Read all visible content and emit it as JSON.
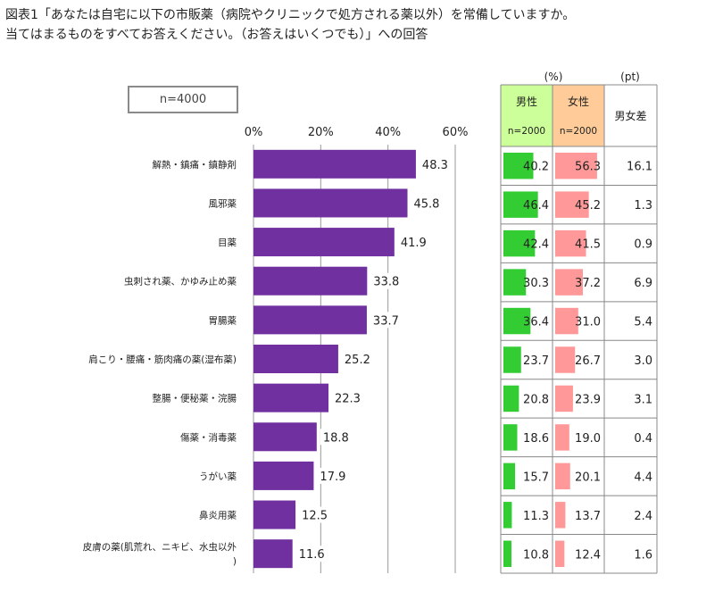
{
  "title_line1": "図表1「あなたは自宅に以下の市販薬（病院やクリニックで処方される薬以外）を常備していますか。",
  "title_line2": "当てはまるものをすべてお答えください。（お答えはいくつでも）」への回答",
  "sample": "n=4000",
  "table_headers": {
    "unit_pct": "(%)",
    "unit_pt": "(pt)",
    "male": "男性",
    "male_n": "n=2000",
    "female": "女性",
    "female_n": "n=2000",
    "diff": "男女差"
  },
  "colors": {
    "bar": "#7030a0",
    "male": "#33cc33",
    "female": "#ff9999",
    "male_header": "#ccff99",
    "female_header": "#ffcc99",
    "diff_red": "#cc0000",
    "diff_blue": "#1f6fbf",
    "grid": "#999999"
  },
  "chart_data": {
    "type": "bar",
    "orientation": "horizontal",
    "xlim": [
      0,
      60
    ],
    "x_ticks": [
      "0%",
      "20%",
      "40%",
      "60%"
    ],
    "categories": [
      "解熱・鎮痛・鎮静剤",
      "風邪薬",
      "目薬",
      "虫刺され薬、かゆみ止め薬",
      "胃腸薬",
      "肩こり・腰痛・筋肉痛の薬(湿布薬)",
      "整腸・便秘薬・浣腸",
      "傷薬・消毒薬",
      "うがい薬",
      "鼻炎用薬",
      "皮膚の薬(肌荒れ、ニキビ、水虫以外)"
    ],
    "values": [
      48.3,
      45.8,
      41.9,
      33.8,
      33.7,
      25.2,
      22.3,
      18.8,
      17.9,
      12.5,
      11.6
    ],
    "value_labels": [
      "48.3",
      "45.8",
      "41.9",
      "33.8",
      "33.7",
      "25.2",
      "22.3",
      "18.8",
      "17.9",
      "12.5",
      "11.6"
    ],
    "male": [
      40.2,
      46.4,
      42.4,
      30.3,
      36.4,
      23.7,
      20.8,
      18.6,
      15.7,
      11.3,
      10.8
    ],
    "male_labels": [
      "40.2",
      "46.4",
      "42.4",
      "30.3",
      "36.4",
      "23.7",
      "20.8",
      "18.6",
      "15.7",
      "11.3",
      "10.8"
    ],
    "female": [
      56.3,
      45.2,
      41.5,
      37.2,
      31.0,
      26.7,
      23.9,
      19.0,
      20.1,
      13.7,
      12.4
    ],
    "female_labels": [
      "56.3",
      "45.2",
      "41.5",
      "37.2",
      "31.0",
      "26.7",
      "23.9",
      "19.0",
      "20.1",
      "13.7",
      "12.4"
    ],
    "diff_labels": [
      "16.1",
      "1.3",
      "0.9",
      "6.9",
      "5.4",
      "3.0",
      "3.1",
      "0.4",
      "4.4",
      "2.4",
      "1.6"
    ],
    "diff_higher": [
      "female",
      "male",
      "male",
      "female",
      "male",
      "female",
      "female",
      "female",
      "female",
      "female",
      "female"
    ]
  }
}
